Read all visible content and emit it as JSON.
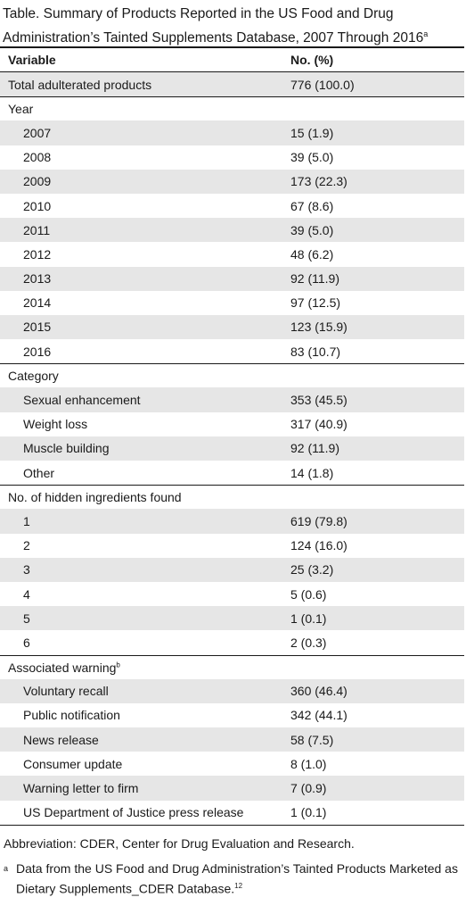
{
  "title": {
    "line1": "Table. Summary of Products Reported in the US Food and Drug",
    "line2": "Administration’s Tainted Supplements Database, 2007 Through 2016",
    "sup": "a"
  },
  "header": {
    "variable": "Variable",
    "value": "No. (%)"
  },
  "total": {
    "label": "Total adulterated products",
    "value": "776 (100.0)"
  },
  "year": {
    "label": "Year",
    "rows": [
      {
        "label": "2007",
        "value": "15 (1.9)"
      },
      {
        "label": "2008",
        "value": "39 (5.0)"
      },
      {
        "label": "2009",
        "value": "173 (22.3)"
      },
      {
        "label": "2010",
        "value": "67 (8.6)"
      },
      {
        "label": "2011",
        "value": "39 (5.0)"
      },
      {
        "label": "2012",
        "value": "48 (6.2)"
      },
      {
        "label": "2013",
        "value": "92 (11.9)"
      },
      {
        "label": "2014",
        "value": "97 (12.5)"
      },
      {
        "label": "2015",
        "value": "123 (15.9)"
      },
      {
        "label": "2016",
        "value": "83 (10.7)"
      }
    ]
  },
  "category": {
    "label": "Category",
    "rows": [
      {
        "label": "Sexual enhancement",
        "value": "353 (45.5)"
      },
      {
        "label": "Weight loss",
        "value": "317 (40.9)"
      },
      {
        "label": "Muscle building",
        "value": "92 (11.9)"
      },
      {
        "label": "Other",
        "value": "14 (1.8)"
      }
    ]
  },
  "hidden": {
    "label": "No. of hidden ingredients found",
    "rows": [
      {
        "label": "1",
        "value": "619 (79.8)"
      },
      {
        "label": "2",
        "value": "124 (16.0)"
      },
      {
        "label": "3",
        "value": "25 (3.2)"
      },
      {
        "label": "4",
        "value": "5 (0.6)"
      },
      {
        "label": "5",
        "value": "1 (0.1)"
      },
      {
        "label": "6",
        "value": "2 (0.3)"
      }
    ]
  },
  "warning": {
    "label": "Associated warning",
    "sup": "b",
    "rows": [
      {
        "label": "Voluntary recall",
        "value": "360 (46.4)"
      },
      {
        "label": "Public notification",
        "value": "342 (44.1)"
      },
      {
        "label": "News release",
        "value": "58 (7.5)"
      },
      {
        "label": "Consumer update",
        "value": "8 (1.0)"
      },
      {
        "label": "Warning letter to firm",
        "value": "7 (0.9)"
      },
      {
        "label": "US Department of Justice press release",
        "value": "1 (0.1)"
      }
    ]
  },
  "abbreviation": "Abbreviation: CDER, Center for Drug Evaluation and Research.",
  "footnote": {
    "mark": "a",
    "text": "Data from the US Food and Drug Administration’s Tainted Products Marketed as Dietary Supplements_CDER Database.",
    "ref": "12"
  }
}
